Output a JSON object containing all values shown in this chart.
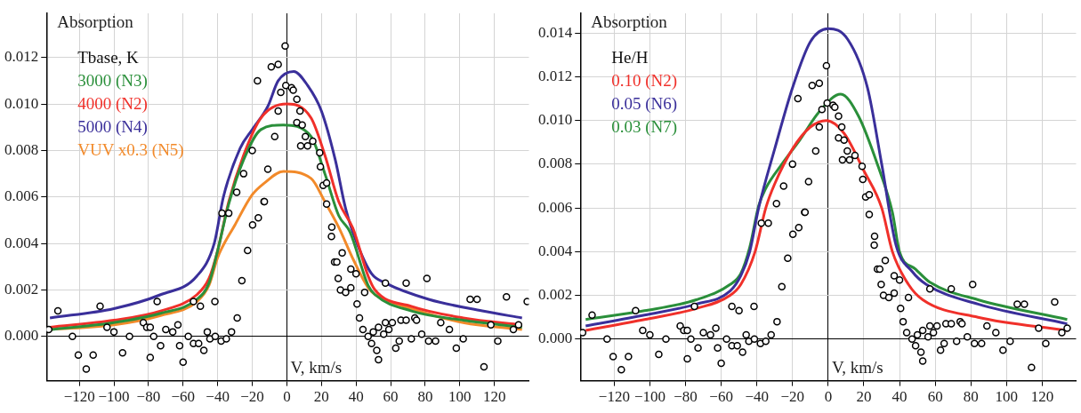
{
  "chart_data": [
    {
      "type": "line",
      "ylabel": "Absorption",
      "xlabel": "V, km/s",
      "legend_title": "Tbase, K",
      "legend": "top left",
      "grid": true,
      "xlim": [
        -139,
        140
      ],
      "ylim": [
        -0.0019,
        0.0139
      ],
      "xticks": [
        {
          "value": -120,
          "label": "−120"
        },
        {
          "value": -100,
          "label": "−100"
        },
        {
          "value": -80,
          "label": "−80"
        },
        {
          "value": -60,
          "label": "−60"
        },
        {
          "value": -40,
          "label": "−40"
        },
        {
          "value": -20,
          "label": "−20"
        },
        0,
        20,
        40,
        60,
        80,
        100,
        120
      ],
      "yticks": [
        {
          "value": 0,
          "label": "0.000"
        },
        {
          "value": 0.002,
          "label": "0.002"
        },
        {
          "value": 0.004,
          "label": "0.004"
        },
        {
          "value": 0.006,
          "label": "0.006"
        },
        {
          "value": 0.008,
          "label": "0.008"
        },
        {
          "value": 0.01,
          "label": "0.010"
        },
        {
          "value": 0.012,
          "label": "0.012"
        }
      ],
      "series": [
        {
          "type": "scatter",
          "marker": "circle",
          "color": "#000000",
          "x": [
            -137.7,
            -132.4,
            -124,
            -120.6,
            -116,
            -112,
            -108,
            -104,
            -100,
            -95,
            -91,
            -83,
            -81,
            -79,
            -79,
            -77,
            -75,
            -73,
            -70,
            -66,
            -63,
            -62,
            -60,
            -57,
            -54,
            -54,
            -51,
            -50,
            -48,
            -46,
            -44.5,
            -41.6,
            -41.4,
            -38,
            -37.5,
            -35,
            -33.6,
            -32,
            -28.7,
            -26,
            -22.7,
            -19.8,
            -16.5,
            -13.2,
            -29,
            -25,
            -20,
            -17,
            -9,
            -5,
            -1,
            -0.6,
            -3.5,
            -5,
            -7,
            -11,
            -13,
            2.7,
            3.7,
            5.8,
            7.6,
            5.8,
            8.9,
            10.7,
            8,
            12,
            15,
            19,
            19.4,
            21,
            23,
            23,
            26,
            25.8,
            27.6,
            28.9,
            29.7,
            31,
            32,
            34,
            37,
            37,
            40,
            40.6,
            42,
            44,
            45,
            47,
            49,
            50,
            52,
            53,
            53,
            56,
            57,
            57,
            59,
            61,
            63,
            65,
            66,
            69,
            69,
            72,
            74,
            75,
            78,
            81,
            82,
            86,
            89,
            94,
            98,
            102,
            106,
            110,
            114,
            118,
            122,
            127,
            131,
            134,
            139
          ],
          "values": [
            0.0003,
            0.0011,
            0,
            -0.0008,
            -0.0014,
            -0.0008,
            0.0013,
            0.0004,
            0.0002,
            -0.0007,
            0,
            0.0006,
            0.0004,
            0.0004,
            -0.0009,
            0,
            0.0015,
            -0.0004,
            0.0003,
            0.0002,
            0.0005,
            -0.0004,
            -0.0011,
            0,
            -0.0003,
            0.0015,
            -0.0003,
            0.0013,
            -0.0006,
            0.0002,
            -0.0001,
            0.0015,
            0,
            -0.0002,
            0.0053,
            -0.0001,
            0.0053,
            0.0002,
            0.0008,
            0.0024,
            0.0037,
            0.0048,
            0.0051,
            0.0058,
            0.0062,
            0.007,
            0.008,
            0.011,
            0.0116,
            0.0117,
            0.0125,
            0.0108,
            0.0105,
            0.0097,
            0.0086,
            0.0072,
            0.0058,
            0.0107,
            0.0106,
            0.0102,
            0.0097,
            0.0092,
            0.0091,
            0.0086,
            0.0082,
            0.0082,
            0.0084,
            0.0079,
            0.0073,
            0.0065,
            0.0066,
            0.0057,
            0.0047,
            0.0043,
            0.0032,
            0.0032,
            0.0025,
            0.002,
            0.0036,
            0.0019,
            0.0029,
            0.0021,
            0.0027,
            0.0014,
            0.0008,
            0.0003,
            0.0019,
            0,
            -0.0003,
            0.0002,
            -0.0006,
            -0.001,
            0.0004,
            0.0001,
            0.0006,
            0.0023,
            0.0003,
            0.0006,
            -0.0005,
            -0.0002,
            0.0007,
            0.0007,
            0.0023,
            -0.0001,
            0.0008,
            0.0007,
            0.0001,
            0.0025,
            -0.0002,
            -0.0002,
            0.0006,
            0.0003,
            -0.0005,
            -0.0001,
            0.0016,
            0.0016,
            -0.0013,
            0.0005,
            -0.0002,
            0.0017,
            0.0003,
            0.0005,
            0.0015
          ]
        },
        {
          "type": "line",
          "name": "3000 (N3)",
          "color": "#2a8f3a",
          "marker": "none",
          "x": [
            -137,
            -100,
            -73,
            -52,
            -45,
            -40,
            -33.6,
            -25,
            -15,
            -2,
            14,
            22,
            30,
            36.5,
            47,
            51,
            72,
            102,
            136
          ],
          "values": [
            0.0003,
            0.0006,
            0.001,
            0.0016,
            0.0023,
            0.0037,
            0.0057,
            0.0076,
            0.0089,
            0.0091,
            0.0086,
            0.007,
            0.0052,
            0.0045,
            0.0022,
            0.0018,
            0.0011,
            0.0007,
            0.0004
          ]
        },
        {
          "type": "line",
          "name": "4000 (N2)",
          "color": "#f0302a",
          "marker": "none",
          "x": [
            -137,
            -100,
            -73,
            -52,
            -45,
            -40,
            -33.6,
            -25,
            -15,
            0,
            14,
            22,
            30,
            38.5,
            47,
            51,
            72,
            102,
            136
          ],
          "values": [
            0.0004,
            0.0007,
            0.0011,
            0.0018,
            0.0025,
            0.0037,
            0.0058,
            0.0078,
            0.0094,
            0.01,
            0.0094,
            0.0078,
            0.0058,
            0.0046,
            0.0026,
            0.002,
            0.0013,
            0.0008,
            0.0005
          ]
        },
        {
          "type": "line",
          "name": "5000 (N4)",
          "color": "#3a2f9a",
          "marker": "none",
          "x": [
            -137,
            -100,
            -73,
            -52,
            -42,
            -36.7,
            -27,
            -20,
            -11,
            -5,
            4,
            12,
            20,
            28,
            34,
            40.6,
            49,
            57,
            82,
            113,
            136
          ],
          "values": [
            0.0008,
            0.0012,
            0.0018,
            0.0026,
            0.004,
            0.006,
            0.0081,
            0.0089,
            0.0099,
            0.011,
            0.0114,
            0.0108,
            0.0097,
            0.0076,
            0.0055,
            0.004,
            0.0027,
            0.0023,
            0.0016,
            0.0011,
            0.0008
          ]
        },
        {
          "type": "line",
          "name": "VUV x0.3 (N5)",
          "color": "#f28a2a",
          "marker": "none",
          "x": [
            -137,
            -100,
            -73,
            -52,
            -45,
            -40,
            -30,
            -20,
            -13,
            -2,
            14,
            22,
            30,
            38.5,
            47,
            51,
            72,
            102,
            136
          ],
          "values": [
            0.0003,
            0.0005,
            0.0009,
            0.0015,
            0.0022,
            0.0034,
            0.0048,
            0.0061,
            0.0066,
            0.0071,
            0.0068,
            0.0058,
            0.0047,
            0.0033,
            0.0021,
            0.0018,
            0.0012,
            0.0006,
            0.0003
          ]
        }
      ]
    },
    {
      "type": "line",
      "ylabel": "Absorption",
      "xlabel": "V, km/s",
      "legend_title": "He/H",
      "legend": "top left",
      "grid": true,
      "xlim": [
        -139,
        139
      ],
      "ylim": [
        -0.0019,
        0.0149
      ],
      "xticks": [
        {
          "value": -120,
          "label": "−120"
        },
        {
          "value": -100,
          "label": "−100"
        },
        {
          "value": -80,
          "label": "−80"
        },
        {
          "value": -60,
          "label": "−60"
        },
        {
          "value": -40,
          "label": "−40"
        },
        {
          "value": -20,
          "label": "−20"
        },
        0,
        20,
        40,
        60,
        80,
        100,
        120
      ],
      "yticks": [
        {
          "value": 0,
          "label": "0.000"
        },
        {
          "value": 0.002,
          "label": "0.002"
        },
        {
          "value": 0.004,
          "label": "0.004"
        },
        {
          "value": 0.006,
          "label": "0.006"
        },
        {
          "value": 0.008,
          "label": "0.008"
        },
        {
          "value": 0.01,
          "label": "0.010"
        },
        {
          "value": 0.012,
          "label": "0.012"
        },
        {
          "value": 0.014,
          "label": "0.014"
        }
      ],
      "series": [
        {
          "type": "scatter",
          "marker": "circle",
          "color": "#000000",
          "x": [
            -137.7,
            -132.4,
            -124,
            -120.6,
            -116,
            -112,
            -108,
            -104,
            -100,
            -95,
            -91,
            -83,
            -81,
            -79,
            -79,
            -77,
            -75,
            -73,
            -70,
            -66,
            -63,
            -62,
            -60,
            -57,
            -54,
            -54,
            -51,
            -50,
            -48,
            -46,
            -44.5,
            -41.6,
            -41.4,
            -38,
            -37.5,
            -35,
            -33.6,
            -32,
            -28.7,
            -26,
            -22.7,
            -19.8,
            -16.5,
            -13.2,
            -29,
            -25,
            -20,
            -17,
            -9,
            -5,
            -1,
            -0.6,
            -3.5,
            -5,
            -7,
            -11,
            -13,
            2.7,
            3.7,
            5.8,
            7.6,
            5.8,
            8.9,
            10.7,
            8,
            12,
            15,
            19,
            19.4,
            21,
            23,
            23,
            26,
            25.8,
            27.6,
            28.9,
            29.7,
            31,
            32,
            34,
            37,
            37,
            40,
            40.6,
            42,
            44,
            45,
            47,
            49,
            50,
            52,
            53,
            53,
            56,
            57,
            57,
            59,
            61,
            63,
            65,
            66,
            69,
            69,
            72,
            74,
            75,
            78,
            81,
            82,
            86,
            89,
            94,
            98,
            102,
            106,
            110,
            114,
            118,
            122,
            127,
            131,
            134
          ],
          "values": [
            0.0003,
            0.0011,
            0,
            -0.0008,
            -0.0014,
            -0.0008,
            0.0013,
            0.0004,
            0.0002,
            -0.0007,
            0,
            0.0006,
            0.0004,
            0.0004,
            -0.0009,
            0,
            0.0015,
            -0.0004,
            0.0003,
            0.0002,
            0.0005,
            -0.0004,
            -0.0011,
            0,
            -0.0003,
            0.0015,
            -0.0003,
            0.0013,
            -0.0006,
            0.0002,
            -0.0001,
            0.0015,
            0,
            -0.0002,
            0.0053,
            -0.0001,
            0.0053,
            0.0002,
            0.0008,
            0.0024,
            0.0037,
            0.0048,
            0.0051,
            0.0058,
            0.0062,
            0.007,
            0.008,
            0.011,
            0.0116,
            0.0117,
            0.0125,
            0.0108,
            0.0105,
            0.0097,
            0.0086,
            0.0072,
            0.0058,
            0.0107,
            0.0106,
            0.0102,
            0.0097,
            0.0092,
            0.0091,
            0.0086,
            0.0082,
            0.0082,
            0.0084,
            0.0079,
            0.0073,
            0.0065,
            0.0066,
            0.0057,
            0.0047,
            0.0043,
            0.0032,
            0.0032,
            0.0025,
            0.002,
            0.0036,
            0.0019,
            0.0029,
            0.0021,
            0.0027,
            0.0014,
            0.0008,
            0.0003,
            0.0019,
            0,
            -0.0003,
            0.0002,
            -0.0006,
            -0.001,
            0.0004,
            0.0001,
            0.0006,
            0.0023,
            0.0003,
            0.0006,
            -0.0005,
            -0.0002,
            0.0007,
            0.0007,
            0.0023,
            -0.0001,
            0.0008,
            0.0007,
            0.0001,
            0.0025,
            -0.0002,
            -0.0002,
            0.0006,
            0.0003,
            -0.0005,
            -0.0001,
            0.0016,
            0.0016,
            -0.0013,
            0.0005,
            -0.0002,
            0.0017,
            0.0003,
            0.0005
          ]
        },
        {
          "type": "line",
          "name": "0.10 (N2)",
          "color": "#f0302a",
          "marker": "none",
          "x": [
            -136,
            -103,
            -74,
            -55,
            -49,
            -41,
            -35,
            -30,
            -20,
            -10,
            -1,
            9,
            20,
            30,
            36,
            45,
            53,
            84,
            134
          ],
          "values": [
            0.0004,
            0.0009,
            0.0014,
            0.002,
            0.0025,
            0.004,
            0.006,
            0.0071,
            0.0087,
            0.0097,
            0.01,
            0.0094,
            0.0077,
            0.006,
            0.004,
            0.0025,
            0.0018,
            0.001,
            0.0004
          ]
        },
        {
          "type": "line",
          "name": "0.05 (N6)",
          "color": "#3a2f9a",
          "marker": "none",
          "x": [
            -136,
            -103,
            -74,
            -55,
            -49,
            -44,
            -39,
            -30,
            -20,
            -10,
            0,
            11,
            22,
            30,
            38,
            47,
            55,
            84,
            134
          ],
          "values": [
            0.0006,
            0.0011,
            0.0016,
            0.0022,
            0.0029,
            0.004,
            0.006,
            0.0087,
            0.0115,
            0.0136,
            0.0142,
            0.0137,
            0.0115,
            0.008,
            0.0043,
            0.0031,
            0.0025,
            0.0016,
            0.0007
          ]
        },
        {
          "type": "line",
          "name": "0.03 (N7)",
          "color": "#2a8f3a",
          "marker": "none",
          "x": [
            -136,
            -103,
            -74,
            -55,
            -49,
            -44,
            -39,
            -35,
            -26,
            -16,
            -5,
            7,
            17,
            28,
            36,
            40,
            49,
            57,
            84,
            134
          ],
          "values": [
            0.0009,
            0.0013,
            0.0018,
            0.0025,
            0.003,
            0.0042,
            0.0061,
            0.0069,
            0.008,
            0.0091,
            0.0104,
            0.0112,
            0.0102,
            0.0079,
            0.0058,
            0.004,
            0.0032,
            0.0026,
            0.0018,
            0.0009
          ]
        }
      ]
    }
  ]
}
